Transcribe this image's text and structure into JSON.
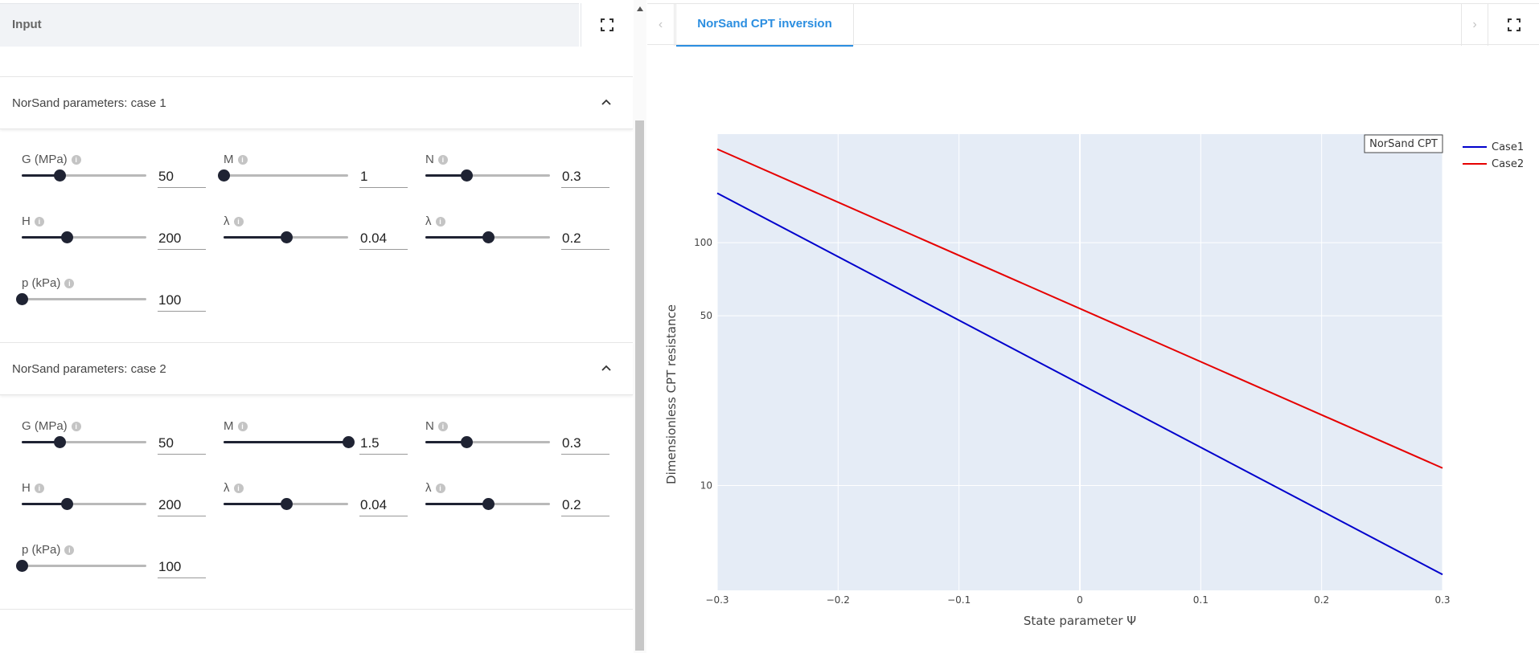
{
  "left_panel": {
    "title": "Input",
    "sections": [
      {
        "title": "NorSand parameters: case 1",
        "params": [
          {
            "label": "G (MPa)",
            "value": "50",
            "fraction": 0.3
          },
          {
            "label": "M",
            "value": "1",
            "fraction": 0.0
          },
          {
            "label": "N",
            "value": "0.3",
            "fraction": 0.33
          },
          {
            "label": "H",
            "value": "200",
            "fraction": 0.36
          },
          {
            "label": "λ",
            "value": "0.04",
            "fraction": 0.5
          },
          {
            "label": "λ",
            "value": "0.2",
            "fraction": 0.5
          },
          {
            "label": "p (kPa)",
            "value": "100",
            "fraction": 0.0
          }
        ]
      },
      {
        "title": "NorSand parameters: case 2",
        "params": [
          {
            "label": "G (MPa)",
            "value": "50",
            "fraction": 0.3
          },
          {
            "label": "M",
            "value": "1.5",
            "fraction": 1.0
          },
          {
            "label": "N",
            "value": "0.3",
            "fraction": 0.33
          },
          {
            "label": "H",
            "value": "200",
            "fraction": 0.36
          },
          {
            "label": "λ",
            "value": "0.04",
            "fraction": 0.5
          },
          {
            "label": "λ",
            "value": "0.2",
            "fraction": 0.5
          },
          {
            "label": "p (kPa)",
            "value": "100",
            "fraction": 0.0
          }
        ]
      }
    ]
  },
  "tabs": {
    "active_label": "NorSand CPT inversion",
    "prev_arrow": "‹",
    "next_arrow": "›"
  },
  "chart_data": {
    "type": "line",
    "title": "NorSand CPT",
    "xlabel": "State parameter Ψ",
    "ylabel": "Dimensionless CPT resistance",
    "x_ticks": [
      "−0.3",
      "−0.2",
      "−0.1",
      "0",
      "0.1",
      "0.2",
      "0.3"
    ],
    "x_tick_values": [
      -0.3,
      -0.2,
      -0.1,
      0,
      0.1,
      0.2,
      0.3
    ],
    "y_ticks": [
      "10",
      "50",
      "100"
    ],
    "y_tick_values": [
      10,
      50,
      100
    ],
    "y_scale": "log",
    "xlim": [
      -0.3,
      0.3
    ],
    "ylim": [
      3.7,
      280
    ],
    "legend_position": "top-right",
    "colors": {
      "plot_bg": "#e5ecf6",
      "grid": "#ffffff",
      "case1": "#0000cc",
      "case2": "#e60000"
    },
    "series": [
      {
        "name": "Case1",
        "x": [
          -0.3,
          0.3
        ],
        "y": [
          160,
          4.3
        ]
      },
      {
        "name": "Case2",
        "x": [
          -0.3,
          0.3
        ],
        "y": [
          243,
          11.8
        ]
      }
    ]
  }
}
